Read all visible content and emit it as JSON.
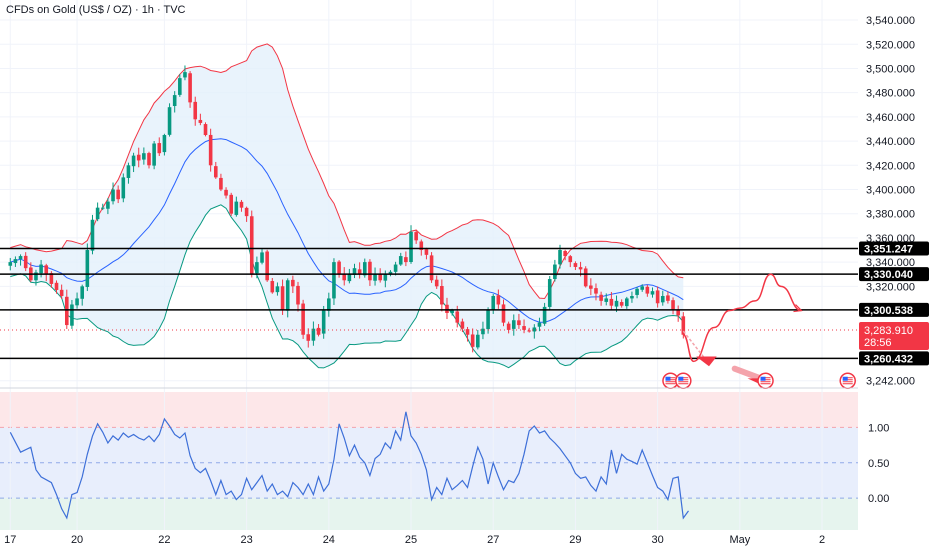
{
  "header": {
    "title": "CFDs on Gold (US$ / OZ) · 1h · TVC"
  },
  "colors": {
    "up": "#089981",
    "down": "#f23645",
    "upper_band": "#f23645",
    "lower_band": "#089981",
    "basis": "#2962ff",
    "band_fill": "#e3f0fb",
    "osc_line": "#3d6fd8",
    "osc_top_zone": "#fde7e9",
    "osc_mid_zone": "#e8eefc",
    "osc_bot_zone": "#e6f4ee",
    "level_line": "#000000",
    "forecast": "#f23645",
    "grid": "#f0f3fa"
  },
  "chart_data": [
    {
      "type": "candlestick",
      "ylim": [
        3236,
        3545
      ],
      "y_ticks": [
        "3,540.000",
        "3,520.000",
        "3,500.000",
        "3,480.000",
        "3,460.000",
        "3,440.000",
        "3,420.000",
        "3,400.000",
        "3,380.000",
        "3,360.000",
        "3,340.000",
        "3,320.000",
        "3,242.000"
      ],
      "y_tick_values": [
        3540,
        3520,
        3500,
        3480,
        3460,
        3440,
        3420,
        3400,
        3380,
        3360,
        3340,
        3320,
        3242
      ],
      "x_ticks": [
        {
          "label": "17",
          "t": 0
        },
        {
          "label": "20",
          "t": 13
        },
        {
          "label": "22",
          "t": 30
        },
        {
          "label": "23",
          "t": 46
        },
        {
          "label": "24",
          "t": 62
        },
        {
          "label": "25",
          "t": 78
        },
        {
          "label": "27",
          "t": 94
        },
        {
          "label": "29",
          "t": 110
        },
        {
          "label": "30",
          "t": 126
        },
        {
          "label": "May",
          "t": 142
        },
        {
          "label": "2",
          "t": 158
        }
      ],
      "levels": [
        {
          "label": "3,351.247",
          "value": 3351.247
        },
        {
          "label": "3,330.040",
          "value": 3330.04
        },
        {
          "label": "3,300.538",
          "value": 3300.538
        },
        {
          "label": "3,260.432",
          "value": 3260.432
        }
      ],
      "current_price": {
        "label": "3,283.910",
        "countdown": "28:56",
        "value": 3283.91
      },
      "close_path": [
        [
          0,
          3340
        ],
        [
          2,
          3345
        ],
        [
          4,
          3325
        ],
        [
          6,
          3338
        ],
        [
          8,
          3322
        ],
        [
          10,
          3312
        ],
        [
          11,
          3288
        ],
        [
          12,
          3305
        ],
        [
          13,
          3310
        ],
        [
          14,
          3320
        ],
        [
          15,
          3350
        ],
        [
          16,
          3375
        ],
        [
          17,
          3385
        ],
        [
          18,
          3385
        ],
        [
          19,
          3390
        ],
        [
          20,
          3400
        ],
        [
          21,
          3392
        ],
        [
          22,
          3410
        ],
        [
          23,
          3420
        ],
        [
          24,
          3428
        ],
        [
          25,
          3424
        ],
        [
          26,
          3430
        ],
        [
          27,
          3420
        ],
        [
          28,
          3438
        ],
        [
          29,
          3430
        ],
        [
          30,
          3445
        ],
        [
          31,
          3468
        ],
        [
          32,
          3478
        ],
        [
          33,
          3492
        ],
        [
          34,
          3497
        ],
        [
          35,
          3472
        ],
        [
          36,
          3458
        ],
        [
          37,
          3455
        ],
        [
          38,
          3445
        ],
        [
          39,
          3420
        ],
        [
          40,
          3410
        ],
        [
          41,
          3400
        ],
        [
          42,
          3395
        ],
        [
          43,
          3380
        ],
        [
          44,
          3390
        ],
        [
          45,
          3385
        ],
        [
          46,
          3378
        ],
        [
          47,
          3330
        ],
        [
          48,
          3340
        ],
        [
          49,
          3348
        ],
        [
          50,
          3325
        ],
        [
          51,
          3315
        ],
        [
          52,
          3320
        ],
        [
          53,
          3300
        ],
        [
          54,
          3325
        ],
        [
          55,
          3320
        ],
        [
          56,
          3305
        ],
        [
          57,
          3280
        ],
        [
          58,
          3275
        ],
        [
          59,
          3285
        ],
        [
          60,
          3280
        ],
        [
          61,
          3300
        ],
        [
          62,
          3310
        ],
        [
          63,
          3340
        ],
        [
          64,
          3330
        ],
        [
          65,
          3325
        ],
        [
          66,
          3330
        ],
        [
          67,
          3335
        ],
        [
          68,
          3330
        ],
        [
          69,
          3340
        ],
        [
          70,
          3325
        ],
        [
          71,
          3330
        ],
        [
          72,
          3325
        ],
        [
          73,
          3330
        ],
        [
          74,
          3332
        ],
        [
          75,
          3338
        ],
        [
          76,
          3345
        ],
        [
          77,
          3340
        ],
        [
          78,
          3365
        ],
        [
          79,
          3358
        ],
        [
          80,
          3350
        ],
        [
          81,
          3346
        ],
        [
          82,
          3325
        ],
        [
          83,
          3320
        ],
        [
          84,
          3305
        ],
        [
          85,
          3298
        ],
        [
          86,
          3300
        ],
        [
          87,
          3290
        ],
        [
          88,
          3285
        ],
        [
          89,
          3280
        ],
        [
          90,
          3270
        ],
        [
          91,
          3280
        ],
        [
          92,
          3285
        ],
        [
          93,
          3300
        ],
        [
          94,
          3312
        ],
        [
          95,
          3305
        ],
        [
          96,
          3290
        ],
        [
          97,
          3284
        ],
        [
          98,
          3292
        ],
        [
          99,
          3288
        ],
        [
          100,
          3284
        ],
        [
          101,
          3283
        ],
        [
          102,
          3286
        ],
        [
          103,
          3290
        ],
        [
          104,
          3303
        ],
        [
          105,
          3326
        ],
        [
          106,
          3338
        ],
        [
          107,
          3350
        ],
        [
          108,
          3345
        ],
        [
          109,
          3340
        ],
        [
          110,
          3336
        ],
        [
          111,
          3334
        ],
        [
          112,
          3320
        ],
        [
          113,
          3318
        ],
        [
          114,
          3314
        ],
        [
          115,
          3308
        ],
        [
          116,
          3310
        ],
        [
          117,
          3304
        ],
        [
          118,
          3308
        ],
        [
          119,
          3304
        ],
        [
          120,
          3310
        ],
        [
          121,
          3312
        ],
        [
          122,
          3318
        ],
        [
          123,
          3320
        ],
        [
          124,
          3314
        ],
        [
          125,
          3316
        ],
        [
          126,
          3306
        ],
        [
          127,
          3312
        ],
        [
          128,
          3308
        ],
        [
          129,
          3301
        ],
        [
          130,
          3296
        ],
        [
          131,
          3280
        ]
      ],
      "forecast_path": [
        [
          131,
          3280
        ],
        [
          133,
          3258
        ],
        [
          137,
          3286
        ],
        [
          140,
          3300
        ],
        [
          142,
          3302
        ],
        [
          145,
          3308
        ],
        [
          148,
          3330
        ],
        [
          150,
          3320
        ],
        [
          154,
          3300
        ]
      ]
    },
    {
      "type": "line",
      "name": "oscillator",
      "ylim": [
        -0.45,
        1.5
      ],
      "y_ticks": [
        "1.00",
        "0.50",
        "0.00"
      ],
      "y_tick_values": [
        1.0,
        0.5,
        0.0
      ],
      "zones": [
        1.0,
        0.5,
        0.0
      ],
      "values": [
        [
          0,
          0.93
        ],
        [
          2,
          0.65
        ],
        [
          4,
          0.72
        ],
        [
          5,
          0.4
        ],
        [
          6,
          0.3
        ],
        [
          8,
          0.22
        ],
        [
          9,
          0.05
        ],
        [
          10,
          -0.15
        ],
        [
          11,
          -0.28
        ],
        [
          12,
          0.05
        ],
        [
          13,
          0.08
        ],
        [
          14,
          0.3
        ],
        [
          15,
          0.62
        ],
        [
          16,
          0.88
        ],
        [
          17,
          1.05
        ],
        [
          18,
          0.93
        ],
        [
          19,
          0.78
        ],
        [
          20,
          0.88
        ],
        [
          21,
          0.82
        ],
        [
          22,
          0.92
        ],
        [
          23,
          0.86
        ],
        [
          24,
          0.9
        ],
        [
          25,
          0.85
        ],
        [
          26,
          0.82
        ],
        [
          27,
          0.88
        ],
        [
          28,
          0.8
        ],
        [
          29,
          0.9
        ],
        [
          30,
          1.12
        ],
        [
          31,
          1.02
        ],
        [
          32,
          0.9
        ],
        [
          33,
          0.85
        ],
        [
          34,
          0.92
        ],
        [
          35,
          0.6
        ],
        [
          36,
          0.42
        ],
        [
          37,
          0.36
        ],
        [
          38,
          0.42
        ],
        [
          39,
          0.25
        ],
        [
          40,
          0.05
        ],
        [
          41,
          0.25
        ],
        [
          42,
          0.05
        ],
        [
          43,
          0.1
        ],
        [
          44,
          -0.02
        ],
        [
          45,
          0.05
        ],
        [
          46,
          0.28
        ],
        [
          47,
          0.12
        ],
        [
          48,
          0.22
        ],
        [
          49,
          0.32
        ],
        [
          50,
          0.1
        ],
        [
          51,
          0.2
        ],
        [
          52,
          0.05
        ],
        [
          53,
          0.1
        ],
        [
          54,
          0.02
        ],
        [
          55,
          0.22
        ],
        [
          56,
          0.15
        ],
        [
          57,
          0.05
        ],
        [
          58,
          0.2
        ],
        [
          59,
          0.05
        ],
        [
          60,
          0.3
        ],
        [
          61,
          0.1
        ],
        [
          62,
          0.2
        ],
        [
          63,
          0.55
        ],
        [
          64,
          1.05
        ],
        [
          65,
          0.85
        ],
        [
          66,
          0.6
        ],
        [
          67,
          0.75
        ],
        [
          68,
          0.58
        ],
        [
          69,
          0.5
        ],
        [
          70,
          0.32
        ],
        [
          71,
          0.56
        ],
        [
          72,
          0.62
        ],
        [
          73,
          0.78
        ],
        [
          74,
          0.7
        ],
        [
          75,
          0.95
        ],
        [
          76,
          0.82
        ],
        [
          77,
          1.22
        ],
        [
          78,
          0.88
        ],
        [
          79,
          0.78
        ],
        [
          80,
          0.62
        ],
        [
          81,
          0.4
        ],
        [
          82,
          -0.02
        ],
        [
          83,
          0.15
        ],
        [
          84,
          0.05
        ],
        [
          85,
          0.28
        ],
        [
          86,
          0.12
        ],
        [
          87,
          0.18
        ],
        [
          88,
          0.25
        ],
        [
          89,
          0.15
        ],
        [
          90,
          0.45
        ],
        [
          91,
          0.72
        ],
        [
          92,
          0.55
        ],
        [
          93,
          0.2
        ],
        [
          94,
          0.5
        ],
        [
          95,
          0.3
        ],
        [
          96,
          0.12
        ],
        [
          97,
          0.25
        ],
        [
          98,
          0.22
        ],
        [
          99,
          0.35
        ],
        [
          100,
          0.62
        ],
        [
          101,
          0.95
        ],
        [
          102,
          1.02
        ],
        [
          103,
          0.92
        ],
        [
          104,
          0.95
        ],
        [
          105,
          0.85
        ],
        [
          106,
          0.78
        ],
        [
          107,
          0.7
        ],
        [
          108,
          0.6
        ],
        [
          109,
          0.5
        ],
        [
          110,
          0.35
        ],
        [
          111,
          0.28
        ],
        [
          112,
          0.3
        ],
        [
          113,
          0.18
        ],
        [
          114,
          0.1
        ],
        [
          115,
          0.3
        ],
        [
          116,
          0.2
        ],
        [
          117,
          0.68
        ],
        [
          118,
          0.35
        ],
        [
          119,
          0.62
        ],
        [
          120,
          0.55
        ],
        [
          121,
          0.52
        ],
        [
          122,
          0.48
        ],
        [
          123,
          0.68
        ],
        [
          124,
          0.5
        ],
        [
          125,
          0.32
        ],
        [
          126,
          0.15
        ],
        [
          127,
          0.1
        ],
        [
          128,
          -0.02
        ],
        [
          129,
          0.28
        ],
        [
          130,
          0.3
        ],
        [
          131,
          -0.28
        ],
        [
          132,
          -0.18
        ]
      ]
    }
  ]
}
